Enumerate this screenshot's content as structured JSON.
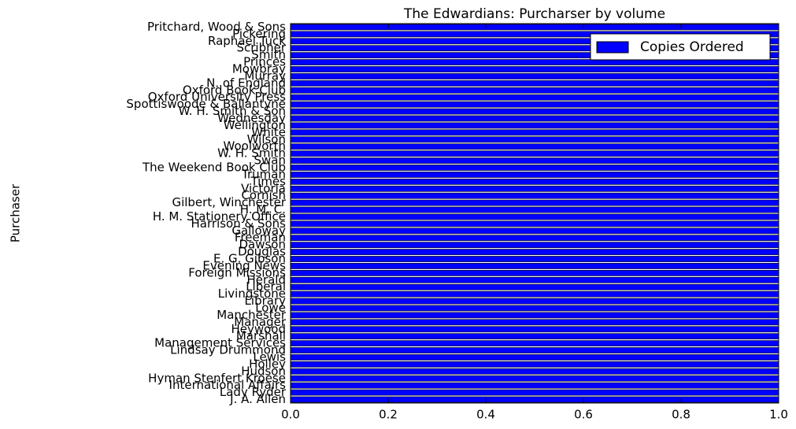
{
  "chart_data": {
    "type": "barh",
    "title": "The Edwardians: Purcharser by volume",
    "ylabel": "Purchaser",
    "categories": [
      "J. A. Allen",
      "Lady Ryder",
      "International Affairs",
      "Hyman Stenfert Kroese",
      "Hudson",
      "Holley",
      "Lewis",
      "Lindsay Drummond",
      "Management Services",
      "Marshall",
      "Heywood",
      "Manager",
      "Manchester",
      "Lowe",
      "Library",
      "Livingstone",
      "Liberal",
      "Herald",
      "Foreign Missions",
      "Evening News",
      "E. G. Gibson",
      "Douglas",
      "Dawson",
      "Freeman",
      "Galloway",
      "Harrison & Sons",
      "H. M. Stationery Office",
      "H. M. C.",
      "Gilbert, Winchester",
      "Cornish",
      "Victoria",
      "Times",
      "Truman",
      "The Weekend Book Club",
      "Swan",
      "W. H. Smith",
      "Woolworth",
      "Wilson",
      "White",
      "Wellington",
      "Wednesday",
      "W. H. Smith & Son",
      "Spottiswoode & Ballantyne",
      "Oxford University Press",
      "Oxford Book Club",
      "N. of England",
      "Murray",
      "Mowbray",
      "Princes",
      "Smith",
      "Scribner",
      "Raphael Tuck",
      "Pickering",
      "Pritchard, Wood & Sons"
    ],
    "series": [
      {
        "name": "Copies Ordered",
        "color": "#0000ff",
        "values": [
          1,
          1,
          1,
          1,
          1,
          1,
          1,
          1,
          1,
          1,
          1,
          1,
          1,
          1,
          1,
          1,
          1,
          1,
          1,
          1,
          1,
          1,
          1,
          1,
          1,
          1,
          1,
          1,
          1,
          1,
          1,
          1,
          1,
          1,
          1,
          1,
          1,
          1,
          1,
          1,
          1,
          1,
          1,
          1,
          1,
          1,
          1,
          1,
          1,
          1,
          1,
          1,
          1,
          1
        ]
      }
    ],
    "xlim": [
      0,
      1
    ],
    "xticks": [
      {
        "value": 0,
        "label": "0.0"
      },
      0.2,
      0.4,
      0.6,
      0.8,
      {
        "value": 1,
        "label": "1.0"
      }
    ],
    "legend": "upper right"
  }
}
